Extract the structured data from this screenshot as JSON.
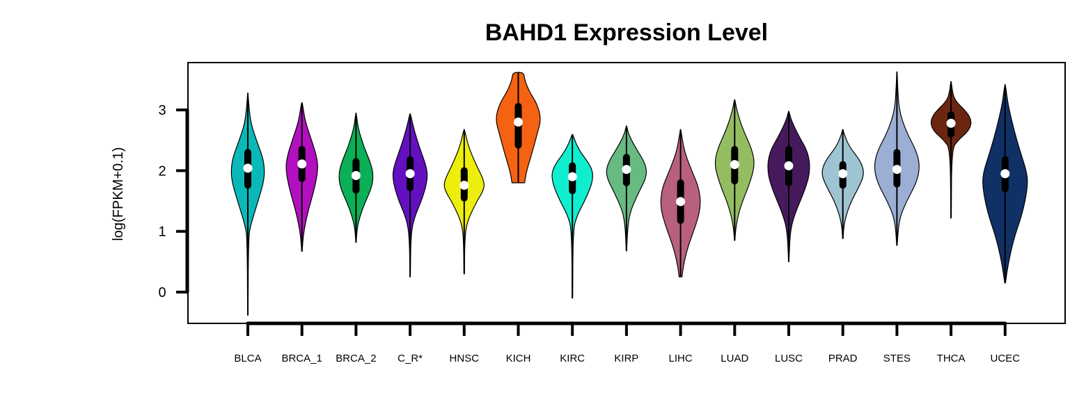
{
  "chart_data": {
    "type": "violin",
    "title": "BAHD1 Expression Level",
    "xlabel": "",
    "ylabel": "log(FPKM+0.1)",
    "ylim": [
      -0.5,
      3.8
    ],
    "yticks": [
      0,
      1,
      2,
      3
    ],
    "grid": false,
    "categories": [
      "BLCA",
      "BRCA_1",
      "BRCA_2",
      "C_R*",
      "HNSC",
      "KICH",
      "KIRC",
      "KIRP",
      "LIHC",
      "LUAD",
      "LUSC",
      "PRAD",
      "STES",
      "THCA",
      "UCEC"
    ],
    "colors": [
      "#0BB8B8",
      "#B20FBF",
      "#0BAF55",
      "#6210C0",
      "#EEEE0E",
      "#F46212",
      "#10EED0",
      "#66BA82",
      "#B86080",
      "#94BD62",
      "#461A5C",
      "#9EC4D2",
      "#9BAED4",
      "#6A2610",
      "#103166"
    ],
    "violins": [
      {
        "min": -0.38,
        "max": 3.28,
        "q1": 1.76,
        "median": 2.04,
        "q3": 2.3,
        "profile": [
          [
            -0.38,
            0.3
          ],
          [
            0.9,
            1
          ],
          [
            1.1,
            4
          ],
          [
            1.4,
            12
          ],
          [
            1.7,
            20
          ],
          [
            1.85,
            23
          ],
          [
            2.0,
            24
          ],
          [
            2.2,
            22
          ],
          [
            2.45,
            14
          ],
          [
            2.75,
            5
          ],
          [
            3.0,
            2
          ],
          [
            3.28,
            0.3
          ]
        ]
      },
      {
        "min": 0.67,
        "max": 3.12,
        "q1": 1.87,
        "median": 2.11,
        "q3": 2.35,
        "profile": [
          [
            0.67,
            0.3
          ],
          [
            0.95,
            2
          ],
          [
            1.3,
            8
          ],
          [
            1.7,
            18
          ],
          [
            2.0,
            23
          ],
          [
            2.2,
            22
          ],
          [
            2.5,
            14
          ],
          [
            2.8,
            5
          ],
          [
            3.05,
            1.5
          ],
          [
            3.12,
            0.5
          ]
        ]
      },
      {
        "min": 0.82,
        "max": 2.95,
        "q1": 1.68,
        "median": 1.92,
        "q3": 2.15,
        "profile": [
          [
            0.82,
            0.3
          ],
          [
            1.1,
            2
          ],
          [
            1.4,
            10
          ],
          [
            1.7,
            22
          ],
          [
            1.9,
            25
          ],
          [
            2.1,
            22
          ],
          [
            2.4,
            11
          ],
          [
            2.7,
            3
          ],
          [
            2.95,
            0.4
          ]
        ]
      },
      {
        "min": 0.25,
        "max": 2.94,
        "q1": 1.72,
        "median": 1.95,
        "q3": 2.18,
        "profile": [
          [
            0.25,
            0.3
          ],
          [
            0.9,
            1
          ],
          [
            1.2,
            5
          ],
          [
            1.55,
            18
          ],
          [
            1.85,
            25
          ],
          [
            2.05,
            24
          ],
          [
            2.4,
            13
          ],
          [
            2.7,
            5
          ],
          [
            2.94,
            0.5
          ]
        ]
      },
      {
        "min": 0.3,
        "max": 2.68,
        "q1": 1.55,
        "median": 1.76,
        "q3": 2.0,
        "profile": [
          [
            0.3,
            0.3
          ],
          [
            0.9,
            1
          ],
          [
            1.15,
            4
          ],
          [
            1.45,
            16
          ],
          [
            1.7,
            29
          ],
          [
            1.85,
            28
          ],
          [
            2.1,
            17
          ],
          [
            2.4,
            6
          ],
          [
            2.68,
            0.5
          ]
        ]
      },
      {
        "min": 1.8,
        "max": 3.62,
        "q1": 2.42,
        "median": 2.8,
        "q3": 3.06,
        "profile": [
          [
            1.8,
            9
          ],
          [
            2.0,
            12
          ],
          [
            2.3,
            20
          ],
          [
            2.6,
            27
          ],
          [
            2.85,
            33
          ],
          [
            3.1,
            27
          ],
          [
            3.3,
            16
          ],
          [
            3.5,
            9
          ],
          [
            3.62,
            8
          ]
        ]
      },
      {
        "min": -0.1,
        "max": 2.6,
        "q1": 1.67,
        "median": 1.9,
        "q3": 2.08,
        "profile": [
          [
            -0.1,
            0.3
          ],
          [
            1.0,
            1
          ],
          [
            1.25,
            6
          ],
          [
            1.55,
            20
          ],
          [
            1.85,
            30
          ],
          [
            2.05,
            28
          ],
          [
            2.3,
            12
          ],
          [
            2.45,
            5
          ],
          [
            2.6,
            0.5
          ]
        ]
      },
      {
        "min": 0.68,
        "max": 2.74,
        "q1": 1.8,
        "median": 2.02,
        "q3": 2.22,
        "profile": [
          [
            0.68,
            0.3
          ],
          [
            1.1,
            2
          ],
          [
            1.35,
            6
          ],
          [
            1.65,
            18
          ],
          [
            1.9,
            29
          ],
          [
            2.1,
            28
          ],
          [
            2.4,
            12
          ],
          [
            2.6,
            3
          ],
          [
            2.74,
            0.4
          ]
        ]
      },
      {
        "min": 0.25,
        "max": 2.68,
        "q1": 1.18,
        "median": 1.49,
        "q3": 1.8,
        "profile": [
          [
            0.25,
            2
          ],
          [
            0.5,
            5
          ],
          [
            0.8,
            12
          ],
          [
            1.1,
            22
          ],
          [
            1.4,
            29
          ],
          [
            1.7,
            27
          ],
          [
            2.0,
            16
          ],
          [
            2.3,
            6
          ],
          [
            2.55,
            2
          ],
          [
            2.68,
            0.3
          ]
        ]
      },
      {
        "min": 0.85,
        "max": 3.17,
        "q1": 1.83,
        "median": 2.1,
        "q3": 2.35,
        "profile": [
          [
            0.85,
            0.3
          ],
          [
            1.1,
            2
          ],
          [
            1.4,
            8
          ],
          [
            1.8,
            22
          ],
          [
            2.1,
            29
          ],
          [
            2.35,
            25
          ],
          [
            2.7,
            11
          ],
          [
            3.0,
            3
          ],
          [
            3.17,
            0.4
          ]
        ]
      },
      {
        "min": 0.5,
        "max": 2.98,
        "q1": 1.8,
        "median": 2.08,
        "q3": 2.35,
        "profile": [
          [
            0.5,
            0.3
          ],
          [
            1.0,
            2
          ],
          [
            1.3,
            9
          ],
          [
            1.7,
            24
          ],
          [
            2.0,
            31
          ],
          [
            2.3,
            28
          ],
          [
            2.6,
            13
          ],
          [
            2.85,
            3
          ],
          [
            2.98,
            0.4
          ]
        ]
      },
      {
        "min": 0.88,
        "max": 2.68,
        "q1": 1.76,
        "median": 1.95,
        "q3": 2.1,
        "profile": [
          [
            0.88,
            0.3
          ],
          [
            1.15,
            2
          ],
          [
            1.45,
            10
          ],
          [
            1.75,
            24
          ],
          [
            1.95,
            31
          ],
          [
            2.15,
            26
          ],
          [
            2.4,
            9
          ],
          [
            2.6,
            2
          ],
          [
            2.68,
            0.3
          ]
        ]
      },
      {
        "min": 0.77,
        "max": 3.63,
        "q1": 1.78,
        "median": 2.02,
        "q3": 2.3,
        "profile": [
          [
            0.77,
            0.3
          ],
          [
            1.2,
            3
          ],
          [
            1.5,
            14
          ],
          [
            1.8,
            28
          ],
          [
            2.05,
            33
          ],
          [
            2.3,
            29
          ],
          [
            2.65,
            13
          ],
          [
            3.0,
            3
          ],
          [
            3.4,
            1
          ],
          [
            3.63,
            0.3
          ]
        ]
      },
      {
        "min": 1.22,
        "max": 3.47,
        "q1": 2.6,
        "median": 2.78,
        "q3": 2.92,
        "profile": [
          [
            1.22,
            0.3
          ],
          [
            2.35,
            1
          ],
          [
            2.5,
            10
          ],
          [
            2.65,
            25
          ],
          [
            2.8,
            30
          ],
          [
            2.95,
            24
          ],
          [
            3.15,
            6
          ],
          [
            3.3,
            2
          ],
          [
            3.47,
            0.3
          ]
        ]
      },
      {
        "min": 0.15,
        "max": 3.42,
        "q1": 1.7,
        "median": 1.95,
        "q3": 2.18,
        "profile": [
          [
            0.15,
            0.5
          ],
          [
            0.5,
            5
          ],
          [
            0.9,
            13
          ],
          [
            1.3,
            25
          ],
          [
            1.7,
            32
          ],
          [
            1.95,
            32
          ],
          [
            2.3,
            22
          ],
          [
            2.7,
            12
          ],
          [
            3.1,
            4
          ],
          [
            3.42,
            0.5
          ]
        ]
      }
    ]
  }
}
